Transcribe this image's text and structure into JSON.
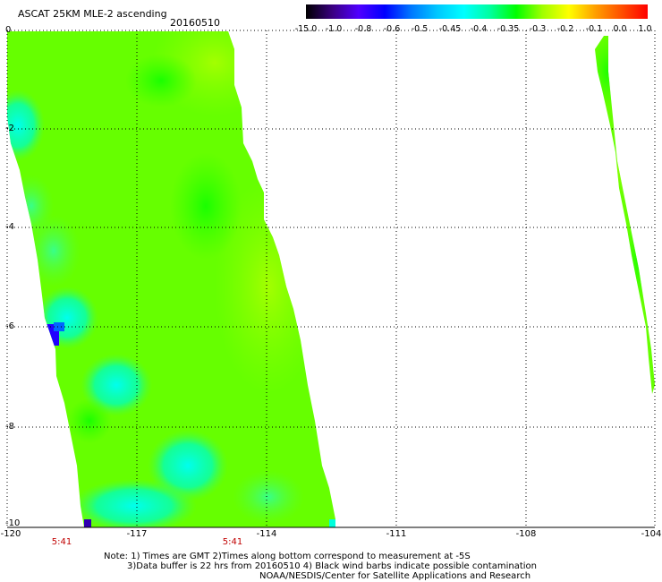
{
  "header": {
    "title": "ASCAT 25KM MLE-2 ascending",
    "date": "20160510"
  },
  "colorbar": {
    "labels": [
      "-15.0",
      "-1.0",
      "-0.8",
      "-0.6",
      "-0.5",
      "-0.45",
      "-0.4",
      "-0.35",
      "-0.3",
      "-0.2",
      "-0.1",
      "0.0",
      "1.0"
    ],
    "colors": [
      "#000000",
      "#3a0080",
      "#5000ff",
      "#0000ff",
      "#0078ff",
      "#00c8ff",
      "#00ffff",
      "#00ffa0",
      "#00ff00",
      "#a0ff00",
      "#ffff00",
      "#ffa000",
      "#ff5000",
      "#ff0000"
    ]
  },
  "map": {
    "y_ticks": [
      "0",
      "-2",
      "-4",
      "-6",
      "-8",
      "-10"
    ],
    "x_ticks": [
      "-120",
      "-117",
      "-114",
      "-111",
      "-108",
      "-104"
    ],
    "times": [
      "5:41",
      "5:41"
    ],
    "swath_colors": {
      "base": "#66ff00",
      "green": "#22ff00",
      "yellowgreen": "#99ff00",
      "aqua": "#33ff88",
      "cyan": "#00ffdd",
      "blue": "#2200ff",
      "navy": "#3000b0"
    }
  },
  "notes": {
    "line1": "Note: 1) Times are GMT 2)Times along bottom correspond to measurement at -5S",
    "line2": "3)Data buffer is 22 hrs from 20160510 4) Black wind barbs indicate possible contamination",
    "line3": "NOAA/NESDIS/Center for Satellite Applications and Research"
  }
}
